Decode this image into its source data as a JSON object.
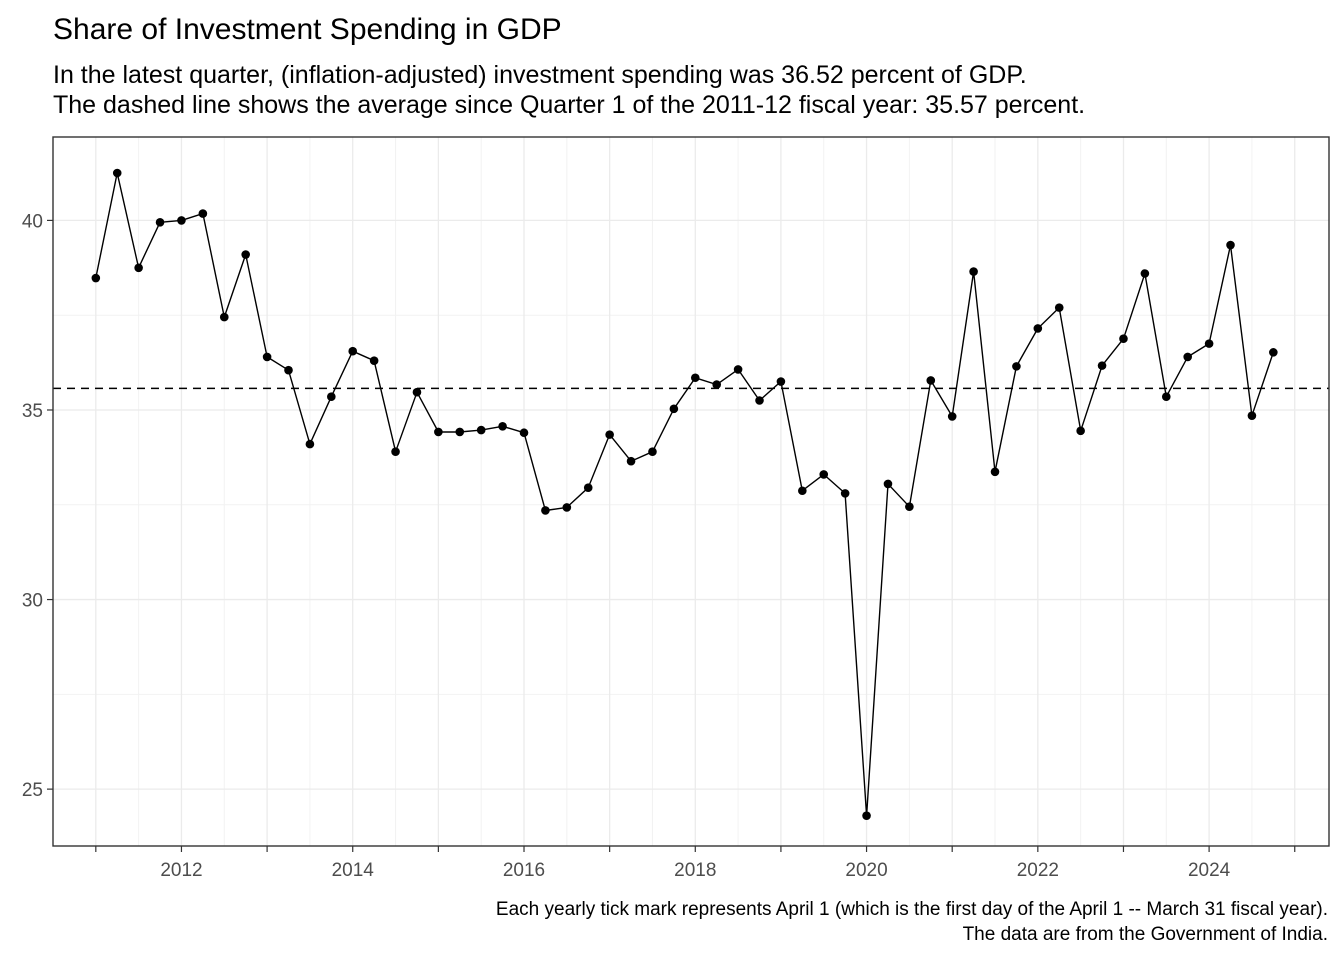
{
  "chart_data": {
    "type": "line",
    "title": "Share of Investment Spending in GDP",
    "subtitle_lines": [
      "In the latest quarter, (inflation-adjusted) investment spending was 36.52 percent of GDP.",
      "The dashed line shows the average since Quarter 1 of the 2011-12 fiscal year: 35.57 percent."
    ],
    "caption_lines": [
      "Each yearly tick mark represents April 1 (which is the first day of the April 1 -- March 31 fiscal year).",
      "The data are from the Government of India."
    ],
    "xlabel": "",
    "ylabel": "",
    "x_ticks": [
      "2012",
      "2014",
      "2016",
      "2018",
      "2020",
      "2022",
      "2024"
    ],
    "y_ticks": [
      "25",
      "30",
      "35",
      "40"
    ],
    "xlim": [
      2010.5,
      2025.4
    ],
    "ylim": [
      23.5,
      42.2
    ],
    "grid": true,
    "reference_line": {
      "value": 35.57,
      "style": "dashed"
    },
    "series": [
      {
        "x": [
          2011.0,
          2011.25,
          2011.5,
          2011.75,
          2012.0,
          2012.25,
          2012.5,
          2012.75,
          2013.0,
          2013.25,
          2013.5,
          2013.75,
          2014.0,
          2014.25,
          2014.5,
          2014.75,
          2015.0,
          2015.25,
          2015.5,
          2015.75,
          2016.0,
          2016.25,
          2016.5,
          2016.75,
          2017.0,
          2017.25,
          2017.5,
          2017.75,
          2018.0,
          2018.25,
          2018.5,
          2018.75,
          2019.0,
          2019.25,
          2019.5,
          2019.75,
          2020.0,
          2020.25,
          2020.5,
          2020.75,
          2021.0,
          2021.25,
          2021.5,
          2021.75,
          2022.0,
          2022.25,
          2022.5,
          2022.75,
          2023.0,
          2023.25,
          2023.5,
          2023.75,
          2024.0,
          2024.25,
          2024.5,
          2024.75
        ],
        "values": [
          38.48,
          41.25,
          38.75,
          39.95,
          40.0,
          40.18,
          37.45,
          39.1,
          36.4,
          36.05,
          34.1,
          35.35,
          36.55,
          36.3,
          33.9,
          35.47,
          34.42,
          34.42,
          34.47,
          34.57,
          34.4,
          32.35,
          32.43,
          32.95,
          34.35,
          33.65,
          33.9,
          35.03,
          35.85,
          35.67,
          36.07,
          35.25,
          35.75,
          32.87,
          33.3,
          32.8,
          24.3,
          33.05,
          32.45,
          35.78,
          34.83,
          38.65,
          33.37,
          36.15,
          37.15,
          37.7,
          34.45,
          36.17,
          36.88,
          38.6,
          35.35,
          36.4,
          36.75,
          39.35,
          34.85,
          36.52
        ]
      }
    ]
  }
}
